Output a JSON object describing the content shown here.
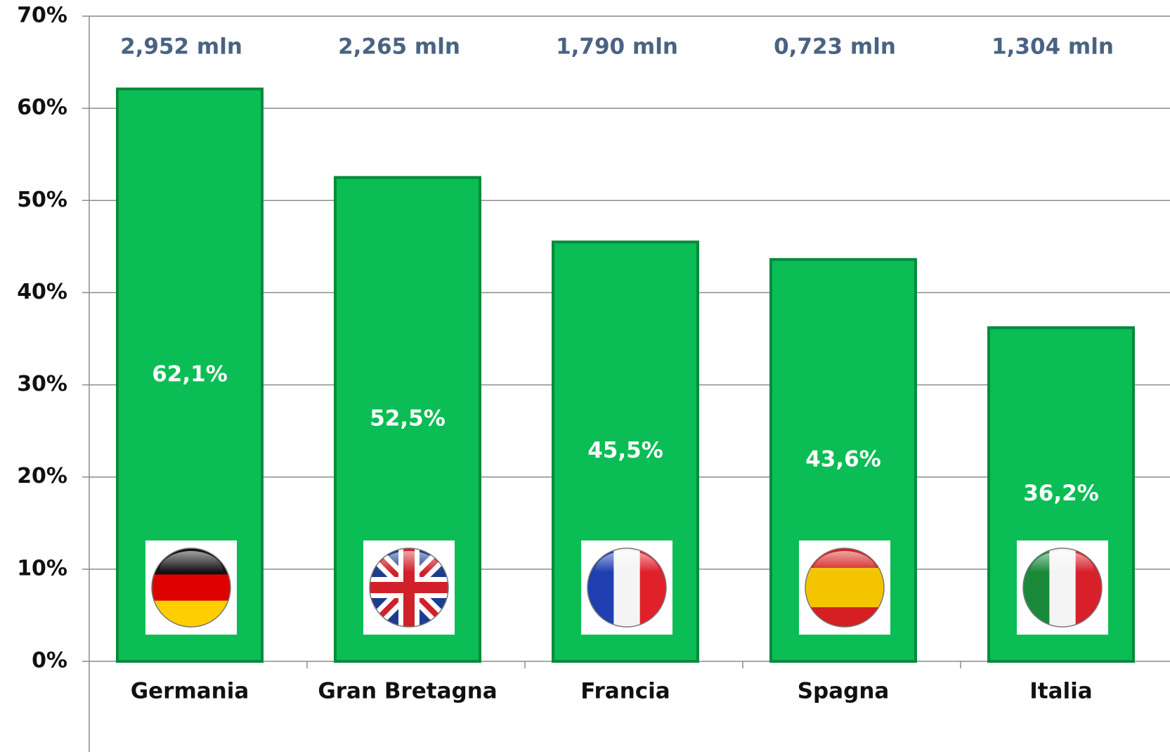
{
  "chart_data": {
    "type": "bar",
    "categories": [
      "Germania",
      "Gran Bretagna",
      "Francia",
      "Spagna",
      "Italia"
    ],
    "values": [
      62.1,
      52.5,
      45.5,
      43.6,
      36.2
    ],
    "value_labels": [
      "62,1%",
      "52,5%",
      "45,5%",
      "43,6%",
      "36,2%"
    ],
    "annotations": [
      "2,952 mln",
      "2,265 mln",
      "1,790 mln",
      "0,723 mln",
      "1,304 mln"
    ],
    "color": "#0abd55",
    "ylim": [
      0,
      70
    ],
    "yticks": [
      {
        "value": 0,
        "label": "0%"
      },
      {
        "value": 10,
        "label": "10%"
      },
      {
        "value": 20,
        "label": "20%"
      },
      {
        "value": 30,
        "label": "30%"
      },
      {
        "value": 40,
        "label": "40%"
      },
      {
        "value": 50,
        "label": "50%"
      },
      {
        "value": 60,
        "label": "60%"
      },
      {
        "value": 70,
        "label": "70%"
      }
    ],
    "grid": true
  }
}
